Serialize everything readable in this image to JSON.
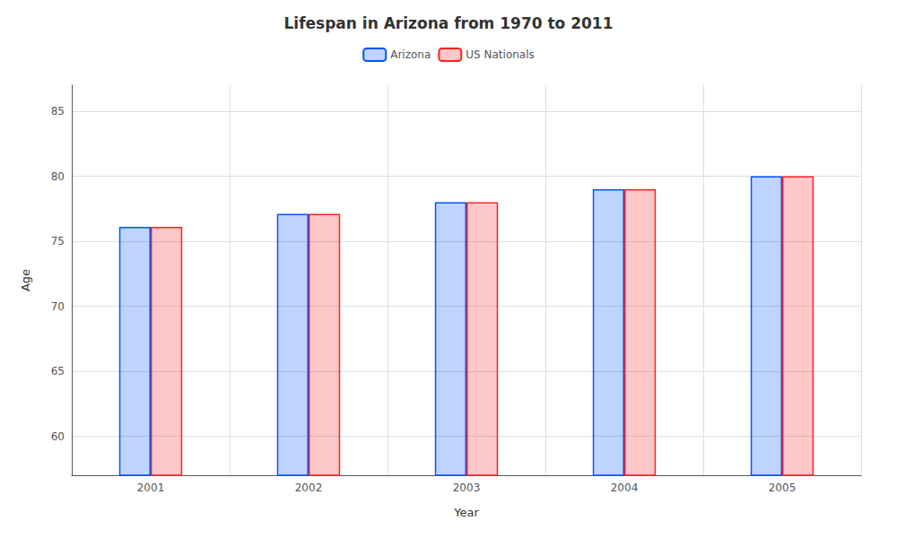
{
  "chart_data": {
    "type": "bar",
    "title": "Lifespan in Arizona from 1970 to 2011",
    "xlabel": "Year",
    "ylabel": "Age",
    "categories": [
      "2001",
      "2002",
      "2003",
      "2004",
      "2005"
    ],
    "series": [
      {
        "name": "Arizona",
        "color": "#0055ff",
        "values": [
          76.1,
          77.1,
          78.0,
          79.0,
          80.0
        ]
      },
      {
        "name": "US Nationals",
        "color": "#ff2222",
        "values": [
          76.1,
          77.1,
          78.0,
          79.0,
          80.0
        ]
      }
    ],
    "ylim": [
      57,
      87
    ],
    "yticks": [
      60,
      65,
      70,
      75,
      80,
      85
    ],
    "grid": true,
    "legend": "top"
  }
}
